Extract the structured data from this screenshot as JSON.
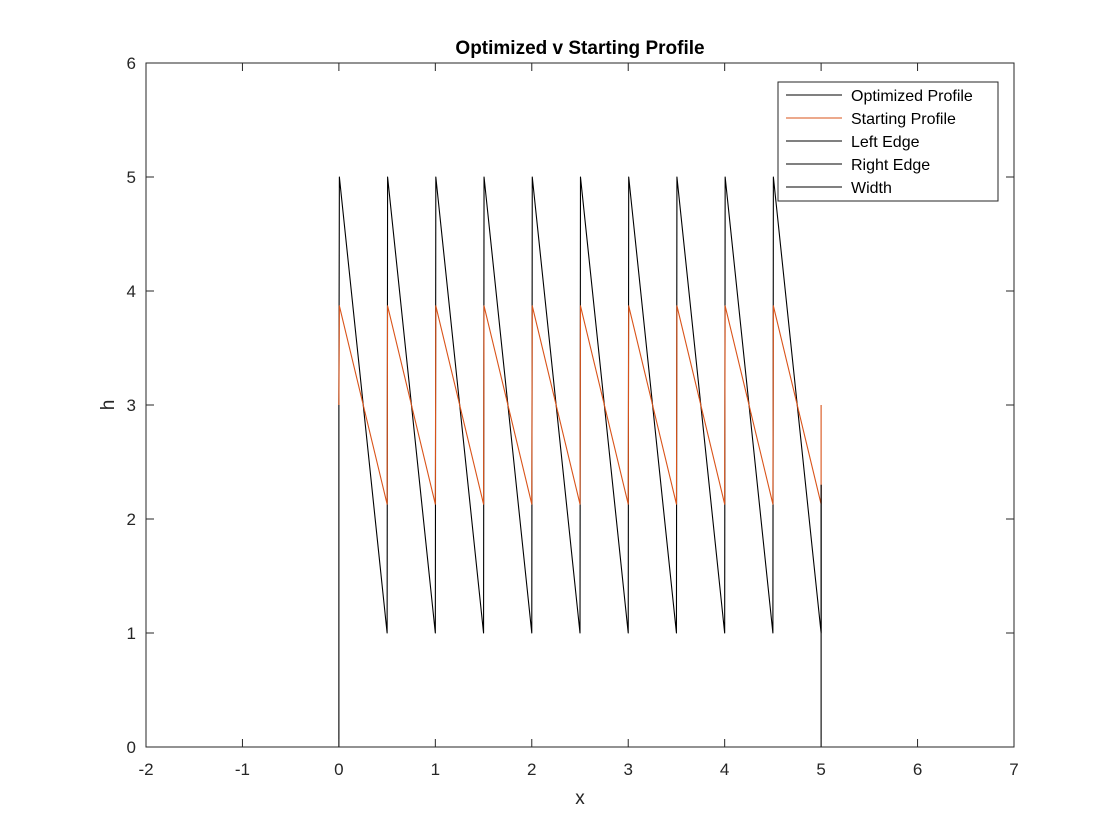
{
  "chart_data": {
    "type": "line",
    "title": "Optimized v Starting Profile",
    "xlabel": "x",
    "ylabel": "h",
    "xlim": [
      -2,
      7
    ],
    "ylim": [
      0,
      6
    ],
    "xticks": [
      -2,
      -1,
      0,
      1,
      2,
      3,
      4,
      5,
      6,
      7
    ],
    "yticks": [
      0,
      1,
      2,
      3,
      4,
      5,
      6
    ],
    "grid": false,
    "legend_location": "top-right",
    "series": [
      {
        "name": "Optimized Profile",
        "color": "#000000",
        "x": [
          0,
          0.005,
          0.5,
          0.505,
          1.0,
          1.005,
          1.5,
          1.505,
          2.0,
          2.005,
          2.5,
          2.505,
          3.0,
          3.005,
          3.5,
          3.505,
          4.0,
          4.005,
          4.5,
          4.505,
          5.0,
          5.0
        ],
        "y": [
          3.0,
          5.0,
          1.0,
          5.0,
          1.0,
          5.0,
          1.0,
          5.0,
          1.0,
          5.0,
          1.0,
          5.0,
          1.0,
          5.0,
          1.0,
          5.0,
          1.0,
          5.0,
          1.0,
          5.0,
          1.0,
          2.3
        ]
      },
      {
        "name": "Starting Profile",
        "color": "#D95319",
        "x": [
          0,
          0.005,
          0.5,
          0.505,
          1.0,
          1.005,
          1.5,
          1.505,
          2.0,
          2.005,
          2.5,
          2.505,
          3.0,
          3.005,
          3.5,
          3.505,
          4.0,
          4.005,
          4.5,
          4.505,
          5.0,
          5.0
        ],
        "y": [
          3.0,
          3.87,
          2.13,
          3.87,
          2.13,
          3.87,
          2.13,
          3.87,
          2.13,
          3.87,
          2.13,
          3.87,
          2.13,
          3.87,
          2.13,
          3.87,
          2.13,
          3.87,
          2.13,
          3.87,
          2.13,
          3.0
        ]
      },
      {
        "name": "Left Edge",
        "color": "#000000",
        "x": [
          0,
          0
        ],
        "y": [
          0,
          3.0
        ]
      },
      {
        "name": "Right Edge",
        "color": "#000000",
        "x": [
          5,
          5
        ],
        "y": [
          0,
          2.3
        ]
      },
      {
        "name": "Width",
        "color": "#000000",
        "x": [
          0,
          5
        ],
        "y": [
          0,
          0
        ]
      }
    ]
  }
}
